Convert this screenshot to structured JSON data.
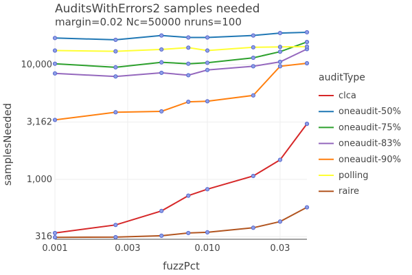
{
  "chart_data": {
    "type": "line",
    "title": "AuditsWithErrors2 samples needed",
    "subtitle": "margin=0.02 Nc=50000 nruns=100",
    "xlabel": "fuzzPct",
    "ylabel": "samplesNeeded",
    "x_scale": "log",
    "y_scale": "log",
    "xlim": [
      0.001,
      0.045
    ],
    "ylim": [
      300,
      20000
    ],
    "x_ticks": [
      {
        "value": 0.001,
        "label": "0.001"
      },
      {
        "value": 0.003,
        "label": "0.003"
      },
      {
        "value": 0.01,
        "label": "0.010"
      },
      {
        "value": 0.03,
        "label": "0.03"
      }
    ],
    "y_ticks": [
      {
        "value": 316,
        "label": "316"
      },
      {
        "value": 1000,
        "label": "1,000"
      },
      {
        "value": 3162,
        "label": "3,162"
      },
      {
        "value": 10000,
        "label": "10,000"
      }
    ],
    "grid": true,
    "legend_title": "auditType",
    "legend_position": "right",
    "x": [
      0.001,
      0.0025,
      0.005,
      0.0075,
      0.01,
      0.02,
      0.03,
      0.045
    ],
    "series": [
      {
        "name": "clca",
        "color": "#d62728",
        "values": [
          340,
          400,
          530,
          720,
          820,
          1070,
          1480,
          3050
        ]
      },
      {
        "name": "oneaudit-50%",
        "color": "#1f77b4",
        "values": [
          17100,
          16500,
          18000,
          17300,
          17300,
          18000,
          18900,
          19200
        ]
      },
      {
        "name": "oneaudit-75%",
        "color": "#2ca02c",
        "values": [
          10200,
          9500,
          10500,
          10200,
          10400,
          11500,
          13000,
          15800
        ]
      },
      {
        "name": "oneaudit-83%",
        "color": "#9467bd",
        "values": [
          8400,
          7900,
          8500,
          8100,
          9000,
          9700,
          10600,
          13700
        ]
      },
      {
        "name": "oneaudit-90%",
        "color": "#ff7f0e",
        "values": [
          3300,
          3850,
          3920,
          4750,
          4800,
          5400,
          9700,
          10300
        ]
      },
      {
        "name": "polling",
        "color": "#ffff33",
        "values": [
          13300,
          13100,
          13600,
          14100,
          13300,
          14200,
          14300,
          14400
        ]
      },
      {
        "name": "raire",
        "color": "#b1541f",
        "values": [
          312,
          313,
          322,
          340,
          345,
          378,
          428,
          570
        ]
      }
    ]
  }
}
